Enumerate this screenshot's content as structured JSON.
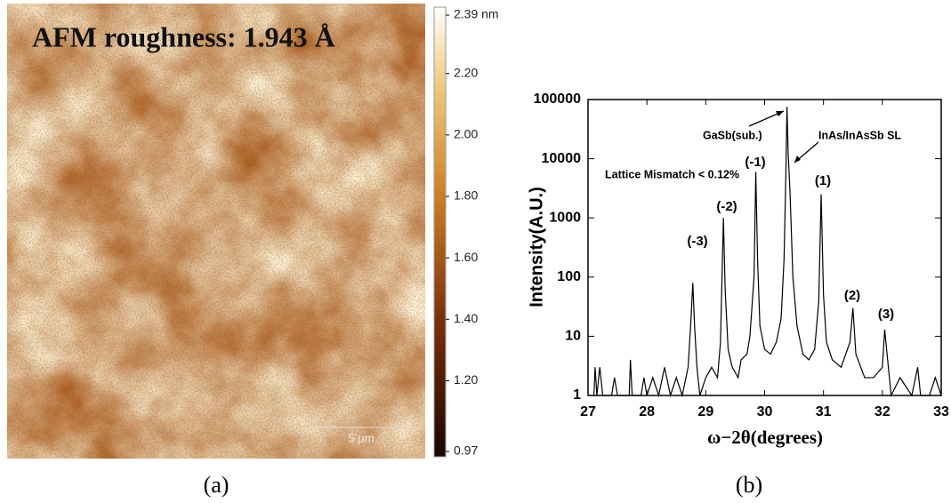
{
  "chart_data": [
    {
      "type": "image",
      "title": "AFM roughness: 1.943 Å",
      "scalebar": "5 µm",
      "caption": "(a)",
      "ylim": [
        0.97,
        2.39
      ],
      "yticks": [
        {
          "value": 2.39,
          "label": "2.39 nm"
        },
        {
          "value": 2.2,
          "label": "2.20"
        },
        {
          "value": 2.0,
          "label": "2.00"
        },
        {
          "value": 1.8,
          "label": "1.80"
        },
        {
          "value": 1.6,
          "label": "1.60"
        },
        {
          "value": 1.4,
          "label": "1.40"
        },
        {
          "value": 1.2,
          "label": "1.20"
        },
        0.97
      ]
    },
    {
      "type": "line",
      "caption": "(b)",
      "xlabel": "ω−2θ(degrees)",
      "ylabel": "Intensity(A.U.)",
      "log_y": true,
      "color": "#000000",
      "annotations": [
        "GaSb(sub.)",
        "InAs/InAsSb SL",
        "Lattice Mismatch < 0.12%",
        "(-3)",
        "(-2)",
        "(-1)",
        "(1)",
        "(2)",
        "(3)"
      ],
      "xlim": [
        27,
        33
      ],
      "xticks": [
        27,
        28,
        29,
        30,
        31,
        32,
        33
      ],
      "ylim": [
        1,
        100000
      ],
      "yticks": [
        1,
        10,
        100,
        1000,
        10000,
        100000
      ],
      "x": [
        27.1,
        27.12,
        27.15,
        27.2,
        27.25,
        27.4,
        27.45,
        27.5,
        27.7,
        27.72,
        27.75,
        27.9,
        27.95,
        28.0,
        28.1,
        28.2,
        28.3,
        28.4,
        28.5,
        28.6,
        28.7,
        28.75,
        28.78,
        28.81,
        28.85,
        28.9,
        29.0,
        29.1,
        29.2,
        29.25,
        29.3,
        29.33,
        29.38,
        29.45,
        29.55,
        29.6,
        29.7,
        29.75,
        29.82,
        29.85,
        29.88,
        29.92,
        30.0,
        30.1,
        30.2,
        30.28,
        30.33,
        30.36,
        30.38,
        30.4,
        30.43,
        30.48,
        30.55,
        30.65,
        30.75,
        30.85,
        30.92,
        30.96,
        31.0,
        31.05,
        31.15,
        31.3,
        31.45,
        31.5,
        31.55,
        31.7,
        31.85,
        32.0,
        32.04,
        32.08,
        32.15,
        32.3,
        32.5,
        32.6,
        32.65,
        32.8,
        32.9,
        33.0
      ],
      "values": [
        1,
        3,
        1,
        3,
        1,
        1,
        2,
        1,
        1,
        4,
        1,
        1,
        2,
        1,
        2,
        1,
        3,
        1,
        2,
        1,
        3,
        20,
        80,
        15,
        3,
        1,
        2,
        3,
        2,
        8,
        1000,
        60,
        6,
        3,
        2,
        4,
        5,
        10,
        100,
        6000,
        200,
        15,
        6,
        5,
        8,
        20,
        200,
        5000,
        75000,
        12000,
        3000,
        100,
        15,
        5,
        4,
        6,
        40,
        2500,
        50,
        8,
        4,
        3,
        8,
        30,
        5,
        2,
        2,
        3,
        13,
        5,
        1,
        2,
        1,
        3,
        1,
        1,
        2,
        1
      ]
    }
  ]
}
